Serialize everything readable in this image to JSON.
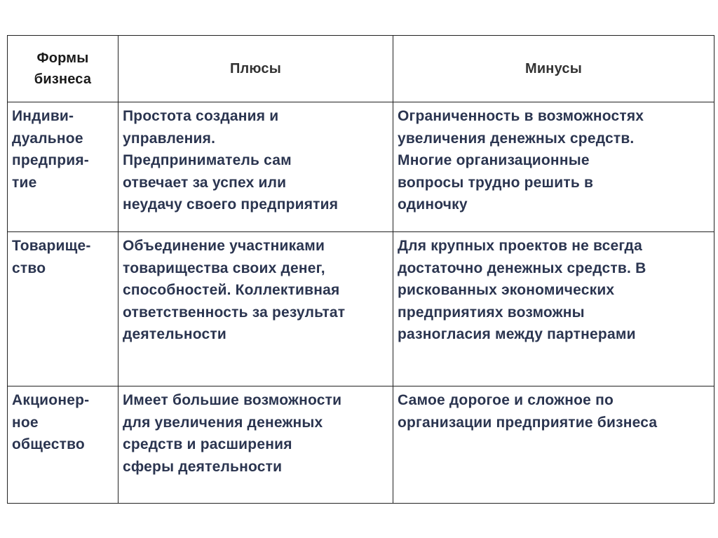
{
  "table": {
    "header": [
      [
        "Формы",
        "бизнеса"
      ],
      [
        "Плюсы"
      ],
      [
        "Минусы"
      ]
    ],
    "rows": [
      [
        [
          "Индиви-",
          "дуальное",
          "предприя-",
          "тие"
        ],
        [
          "Простота создания и",
          "управления.",
          "Предприниматель сам",
          "отвечает за успех или",
          "неудачу своего предприятия"
        ],
        [
          "Ограниченность в возможностях",
          "увеличения денежных средств.",
          "Многие организационные",
          "вопросы трудно решить в",
          "одиночку"
        ]
      ],
      [
        [
          "Товарище-",
          "ство"
        ],
        [
          "Объединение участниками",
          "товарищества своих денег,",
          "способностей. Коллективная",
          "ответственность за результат",
          "деятельности"
        ],
        [
          "Для крупных проектов не всегда",
          "достаточно денежных средств. В",
          "рискованных экономических",
          "предприятиях возможны",
          "разногласия между партнерами"
        ]
      ],
      [
        [
          "Акционер-",
          "ное",
          "общество"
        ],
        [
          "Имеет большие возможности",
          "для увеличения денежных",
          "средств и расширения",
          "сферы деятельности"
        ],
        [
          "Самое дорогое и сложное по",
          "организации предприятие бизнеса"
        ]
      ]
    ]
  }
}
